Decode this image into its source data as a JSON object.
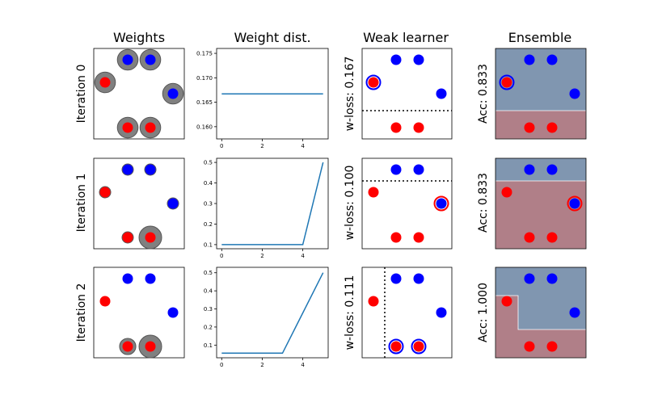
{
  "column_titles": [
    "Weights",
    "Weight dist.",
    "Weak learner",
    "Ensemble"
  ],
  "row_labels": [
    "Iteration 0",
    "Iteration 1",
    "Iteration 2"
  ],
  "colors": {
    "class_pos": "#0000ff",
    "class_neg": "#ff0000",
    "weight_circle": "#808080",
    "line": "#1f77b4",
    "region_pos": "#8096b0",
    "region_neg": "#b07f88"
  },
  "chart_data": [
    {
      "type": "scatter",
      "title": "Weights",
      "points": [
        {
          "x": 1,
          "y": 2,
          "label": 0
        },
        {
          "x": 2,
          "y": 3,
          "label": 1
        },
        {
          "x": 3,
          "y": 3,
          "label": 1
        },
        {
          "x": 4,
          "y": 1.5,
          "label": 1
        },
        {
          "x": 2,
          "y": 0,
          "label": 0
        },
        {
          "x": 3,
          "y": 0,
          "label": 0
        }
      ],
      "point_labels_note": "label 1 = blue, label 0 = red"
    },
    {
      "type": "line",
      "title": "Weight dist.",
      "x": [
        0,
        1,
        2,
        3,
        4,
        5
      ],
      "series": [
        {
          "values": [
            0.1667,
            0.1667,
            0.1667,
            0.1667,
            0.1667,
            0.1667
          ],
          "ylim": [
            0.1575,
            0.176
          ],
          "yticks": [
            "0.160",
            "0.165",
            "0.170",
            "0.175"
          ]
        },
        {
          "values": [
            0.1,
            0.1,
            0.1,
            0.1,
            0.1,
            0.5
          ],
          "ylim": [
            0.08,
            0.52
          ],
          "yticks": [
            "0.1",
            "0.2",
            "0.3",
            "0.4",
            "0.5"
          ]
        },
        {
          "values": [
            0.0556,
            0.0556,
            0.0556,
            0.0556,
            0.2778,
            0.5
          ],
          "ylim": [
            0.03,
            0.53
          ],
          "yticks": [
            "0.1",
            "0.2",
            "0.3",
            "0.4",
            "0.5"
          ]
        }
      ],
      "xticks": [
        "0",
        "2",
        "4"
      ]
    },
    {
      "type": "scatter",
      "title": "Weak learner",
      "rows": [
        {
          "ylabel": "w-loss: 0.167",
          "split": {
            "axis": "y",
            "value": 0.75
          },
          "misclassified": [
            0
          ]
        },
        {
          "ylabel": "w-loss: 0.100",
          "split": {
            "axis": "y",
            "value": 2.5
          },
          "misclassified": [
            3
          ]
        },
        {
          "ylabel": "w-loss: 0.111",
          "split": {
            "axis": "x",
            "value": 1.5
          },
          "misclassified": [
            4,
            5
          ]
        }
      ]
    },
    {
      "type": "scatter",
      "title": "Ensemble",
      "rows": [
        {
          "ylabel": "Acc: 0.833",
          "misclassified": [
            0
          ]
        },
        {
          "ylabel": "Acc: 0.833",
          "misclassified": [
            3
          ]
        },
        {
          "ylabel": "Acc: 1.000",
          "misclassified": []
        }
      ]
    }
  ]
}
